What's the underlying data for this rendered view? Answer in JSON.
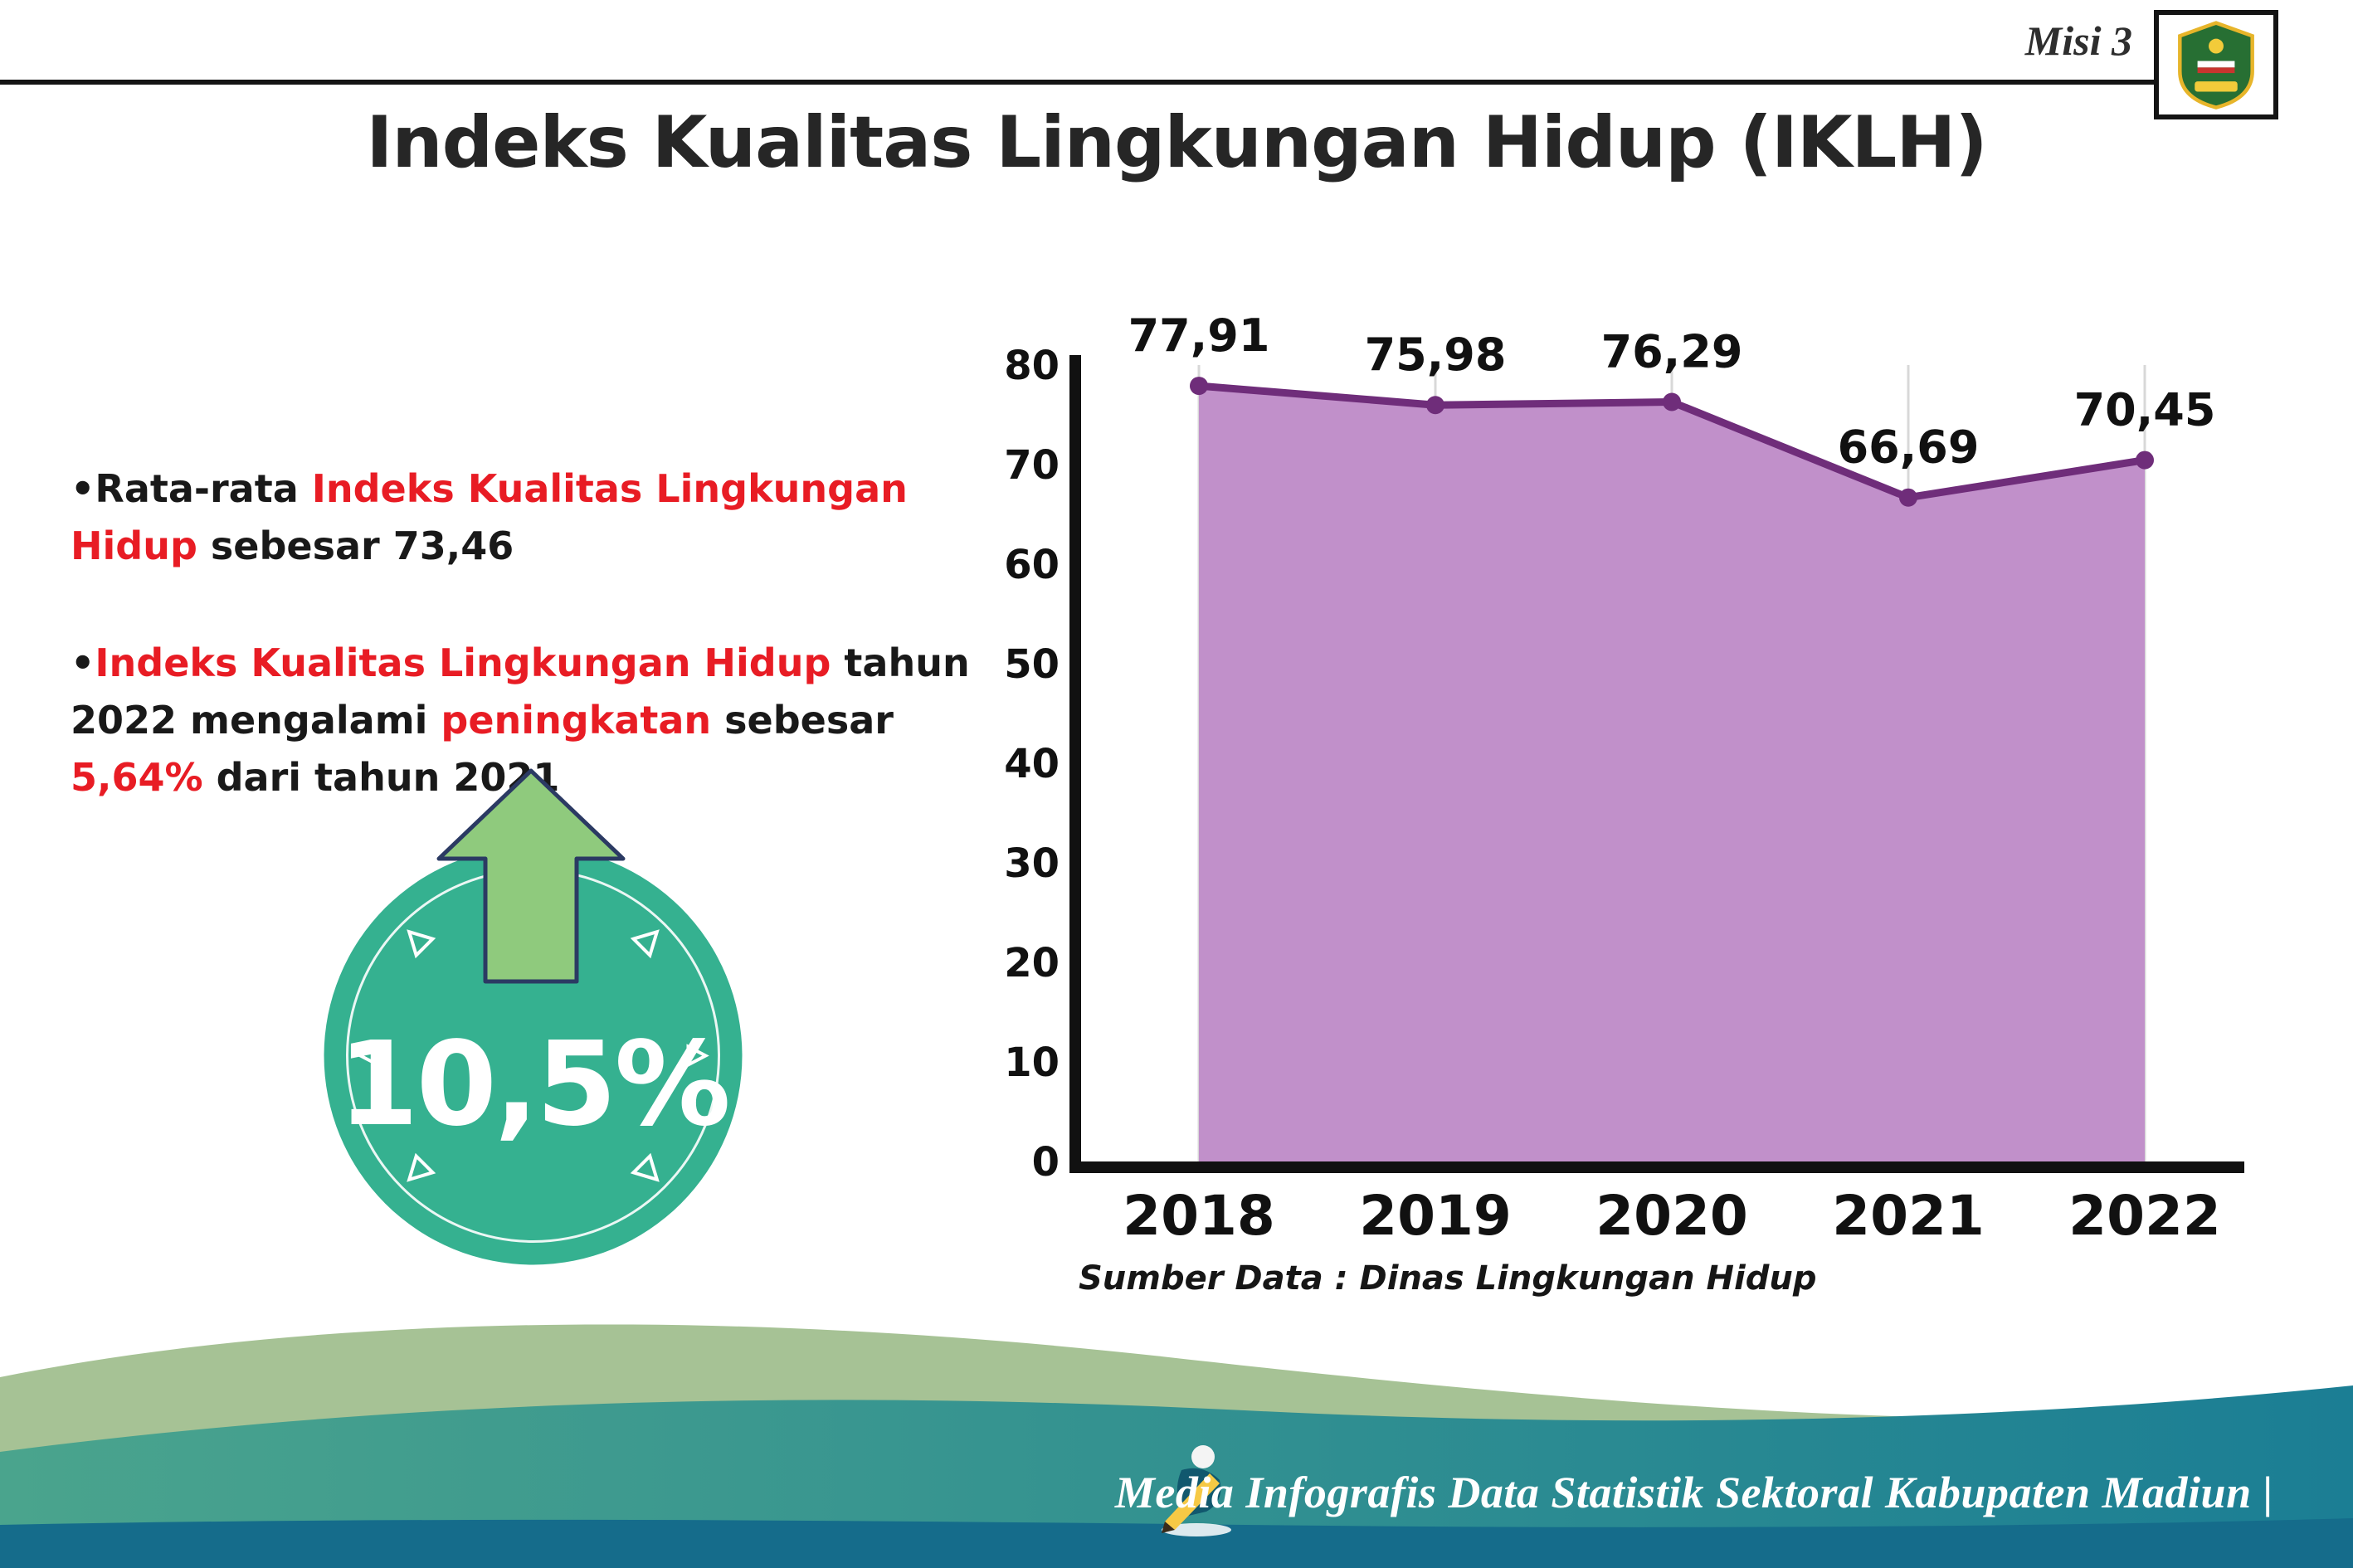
{
  "page": {
    "misi_label": "Misi 3",
    "title": "Indeks Kualitas Lingkungan Hidup (IKLH)"
  },
  "insights": {
    "bullet_char": "•",
    "b1_part1": "Rata-rata ",
    "b1_part2_red": "Indeks Kualitas Lingkungan Hidup",
    "b1_part3": " sebesar 73,46",
    "b2_part1_red": "Indeks Kualitas Lingkungan Hidup",
    "b2_part2": " tahun 2022 mengalami ",
    "b2_part3_red": "peningkatan",
    "b2_part4": " sebesar ",
    "b2_part5_red": "5,64%",
    "b2_part6": " dari tahun 2021"
  },
  "badge": {
    "value": "10,5%"
  },
  "chart_data": {
    "type": "area",
    "title": "Indeks Kualitas Lingkungan Hidup (IKLH) 2018-2022",
    "categories": [
      "2018",
      "2019",
      "2020",
      "2021",
      "2022"
    ],
    "values": [
      77.91,
      75.98,
      76.29,
      66.69,
      70.45
    ],
    "point_labels": [
      "77,91",
      "75,98",
      "76,29",
      "66,69",
      "70,45"
    ],
    "ylim": [
      0,
      80
    ],
    "yticks": [
      0,
      10,
      20,
      30,
      40,
      50,
      60,
      70,
      80
    ],
    "xlabel": "",
    "ylabel": "",
    "legend": "none",
    "grid": "light vertical gridlines",
    "fill_color": "#c190ca",
    "line_color": "#6f2d7a",
    "source_note": "Sumber Data : Dinas Lingkungan Hidup"
  },
  "footer": {
    "caption": "Media Infografis Data Statistik Sektoral Kabupaten Madiun |"
  },
  "colors": {
    "accent_red": "#e81c24",
    "badge_teal": "#35b190",
    "arrow_green": "#8fca7d",
    "footer_sage": "#a6c295",
    "footer_teal_start": "#4aa48d",
    "footer_teal_end": "#1b7e94",
    "footer_bottom_strip": "#156c8b"
  }
}
